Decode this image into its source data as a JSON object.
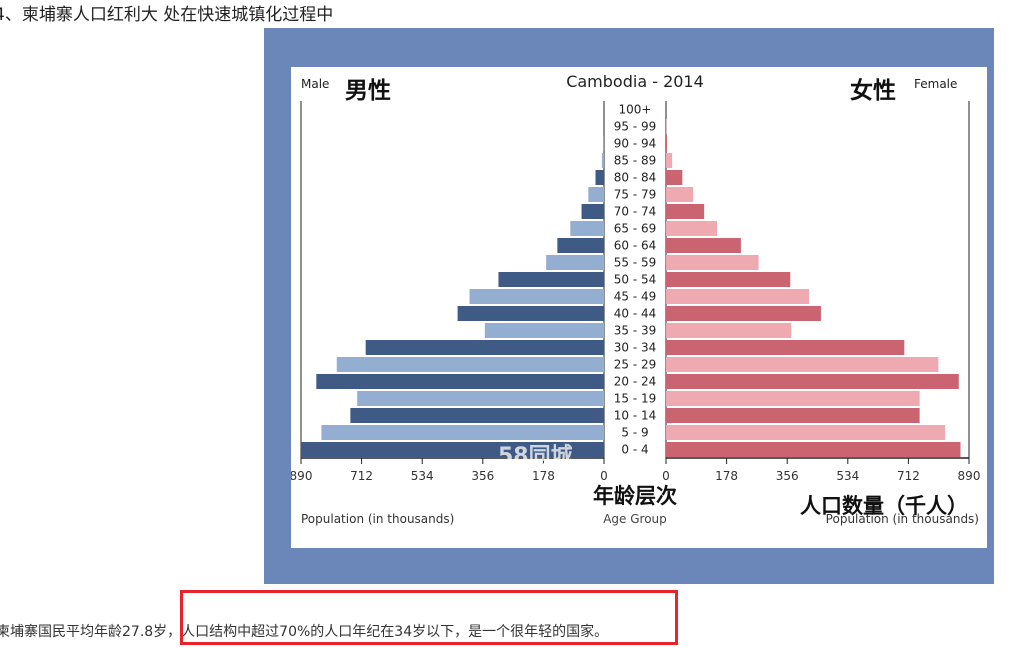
{
  "article": {
    "heading": "4、柬埔寨人口红利大 处在快速城镇化过程中",
    "paragraph_before": "柬埔寨国民平均年龄27.8岁",
    "paragraph_highlight": "，人口结构中超过70%的人口年纪在34岁以下，是一个很年轻的国家。",
    "highlight_color": "#e8232b"
  },
  "chart_data": {
    "type": "bar",
    "title": "Cambodia - 2014",
    "male_label_en": "Male",
    "male_label_zh": "男性",
    "female_label_en": "Female",
    "female_label_zh": "女性",
    "center_label_zh": "年龄层次",
    "center_label_en": "Age Group",
    "xlabel_left": "Population (in thousands)",
    "xlabel_right": "Population (in thousands)",
    "xlabel_right_zh": "人口数量（千人）",
    "watermark": "58同城",
    "xlim": [
      0,
      890
    ],
    "ticks_left": [
      "890",
      "712",
      "534",
      "356",
      "178",
      "0"
    ],
    "ticks_right": [
      "0",
      "178",
      "356",
      "534",
      "712",
      "890"
    ],
    "categories": [
      "100+",
      "95 - 99",
      "90 - 94",
      "85 - 89",
      "80 - 84",
      "75 - 79",
      "70 - 74",
      "65 - 69",
      "60 - 64",
      "55 - 59",
      "50 - 54",
      "45 - 49",
      "40 - 44",
      "35 - 39",
      "30 - 34",
      "25 - 29",
      "20 - 24",
      "15 - 19",
      "10 - 14",
      "5 - 9",
      "0 - 4"
    ],
    "series": [
      {
        "name": "Male",
        "values": [
          0,
          0,
          1,
          6,
          25,
          46,
          66,
          99,
          137,
          170,
          310,
          395,
          430,
          350,
          700,
          785,
          845,
          725,
          745,
          830,
          890
        ],
        "colors": [
          "#3e5a85",
          "#94aed2"
        ]
      },
      {
        "name": "Female",
        "values": [
          0,
          1,
          3,
          18,
          48,
          80,
          112,
          150,
          220,
          272,
          365,
          420,
          455,
          368,
          700,
          800,
          860,
          745,
          745,
          820,
          865
        ],
        "colors": [
          "#c96470",
          "#eeaab0"
        ]
      }
    ]
  }
}
